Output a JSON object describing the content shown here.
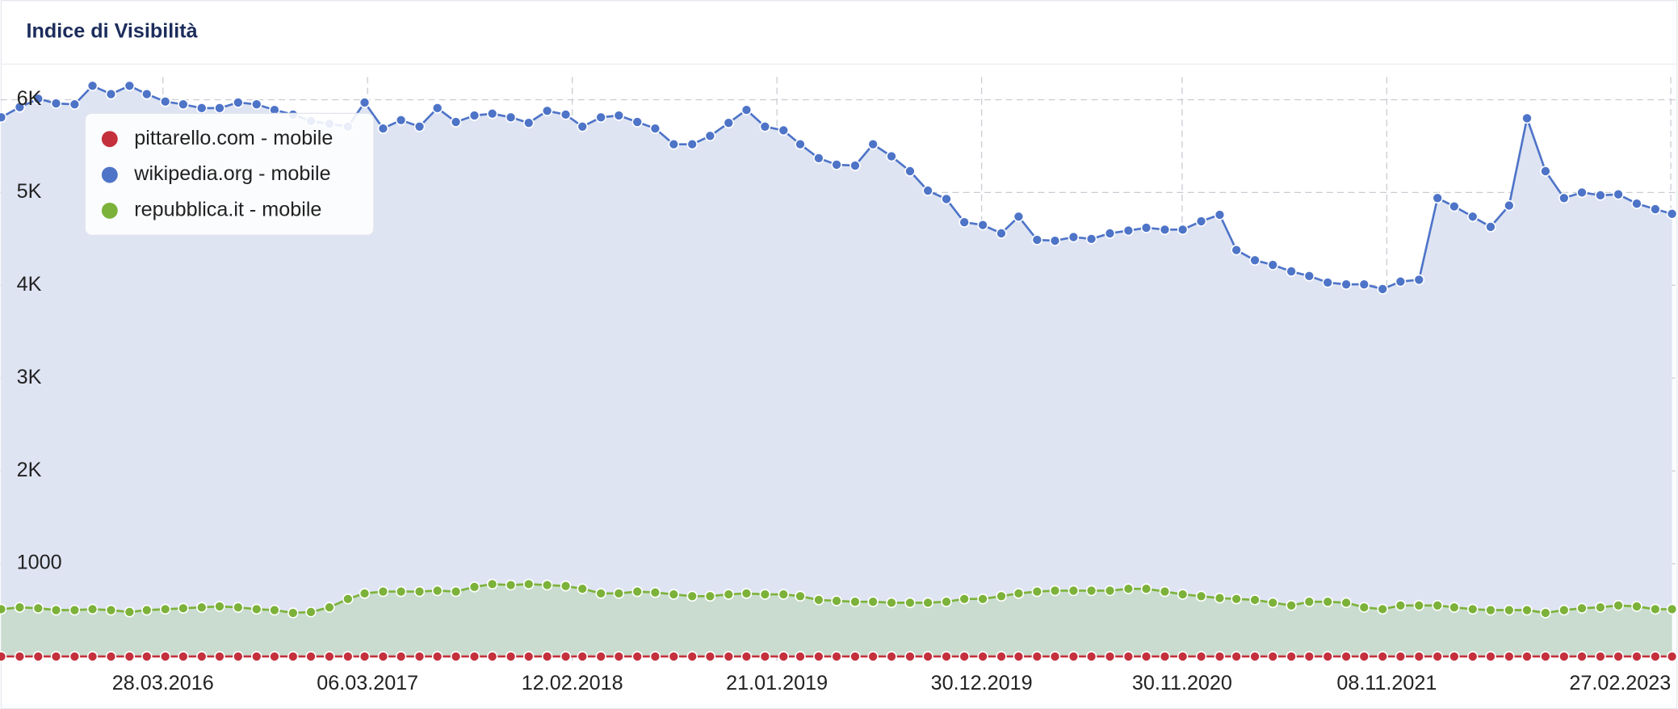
{
  "chart_data": {
    "type": "line",
    "title": "Indice di Visibilità",
    "x": [
      "01.07.2015",
      "01.08.2015",
      "01.09.2015",
      "01.10.2015",
      "01.11.2015",
      "01.12.2015",
      "01.01.2016",
      "01.02.2016",
      "01.03.2016",
      "01.04.2016",
      "01.05.2016",
      "01.06.2016",
      "01.07.2016",
      "01.08.2016",
      "01.09.2016",
      "01.10.2016",
      "01.11.2016",
      "01.12.2016",
      "01.01.2017",
      "01.02.2017",
      "01.03.2017",
      "01.04.2017",
      "01.05.2017",
      "01.06.2017",
      "01.07.2017",
      "01.08.2017",
      "01.09.2017",
      "01.10.2017",
      "01.11.2017",
      "01.12.2017",
      "01.01.2018",
      "01.02.2018",
      "01.03.2018",
      "01.04.2018",
      "01.05.2018",
      "01.06.2018",
      "01.07.2018",
      "01.08.2018",
      "01.09.2018",
      "01.10.2018",
      "01.11.2018",
      "01.12.2018",
      "01.01.2019",
      "01.02.2019",
      "01.03.2019",
      "01.04.2019",
      "01.05.2019",
      "01.06.2019",
      "01.07.2019",
      "01.08.2019",
      "01.09.2019",
      "01.10.2019",
      "01.11.2019",
      "01.12.2019",
      "01.01.2020",
      "01.02.2020",
      "01.03.2020",
      "01.04.2020",
      "01.05.2020",
      "01.06.2020",
      "01.07.2020",
      "01.08.2020",
      "01.09.2020",
      "01.10.2020",
      "01.11.2020",
      "01.12.2020",
      "01.01.2021",
      "01.02.2021",
      "01.03.2021",
      "01.04.2021",
      "01.05.2021",
      "01.06.2021",
      "01.07.2021",
      "01.08.2021",
      "01.09.2021",
      "01.10.2021",
      "01.11.2021",
      "01.12.2021",
      "01.01.2022",
      "01.02.2022",
      "01.03.2022",
      "01.04.2022",
      "01.05.2022",
      "01.06.2022",
      "01.07.2022",
      "01.08.2022",
      "01.09.2022",
      "01.10.2022",
      "01.11.2022",
      "01.12.2022",
      "01.01.2023",
      "01.02.2023",
      "01.03.2023"
    ],
    "series": [
      {
        "name": "pittarello.com - mobile",
        "color": "#c4303c",
        "area_color": null,
        "values": [
          0,
          0,
          0,
          0,
          0,
          0,
          0,
          0,
          0,
          0,
          0,
          0,
          0,
          0,
          0,
          0,
          0,
          0,
          0,
          0,
          0,
          0,
          0,
          0,
          0,
          0,
          0,
          0,
          0,
          0,
          0,
          0,
          0,
          0,
          0,
          0,
          0,
          0,
          0,
          0,
          0,
          0,
          0,
          0,
          0,
          0,
          0,
          0,
          0,
          0,
          0,
          0,
          0,
          0,
          0,
          0,
          0,
          0,
          0,
          0,
          0,
          0,
          0,
          0,
          0,
          0,
          0,
          0,
          0,
          0,
          0,
          0,
          0,
          0,
          0,
          0,
          0,
          0,
          0,
          0,
          0,
          0,
          0,
          0,
          0,
          0,
          0,
          0,
          0,
          0,
          0,
          0,
          0
        ]
      },
      {
        "name": "wikipedia.org - mobile",
        "color": "#4e74c8",
        "area_color": "#dfe4f3",
        "values": [
          5810,
          5920,
          6010,
          5960,
          5950,
          6150,
          6060,
          6150,
          6060,
          5980,
          5950,
          5910,
          5910,
          5970,
          5950,
          5890,
          5840,
          5770,
          5740,
          5710,
          5970,
          5690,
          5780,
          5710,
          5910,
          5760,
          5830,
          5850,
          5810,
          5750,
          5880,
          5840,
          5710,
          5810,
          5830,
          5760,
          5690,
          5520,
          5520,
          5610,
          5750,
          5890,
          5710,
          5670,
          5520,
          5370,
          5300,
          5290,
          5520,
          5390,
          5230,
          5020,
          4930,
          4680,
          4650,
          4560,
          4740,
          4490,
          4480,
          4520,
          4500,
          4560,
          4590,
          4620,
          4600,
          4600,
          4690,
          4760,
          4380,
          4270,
          4220,
          4150,
          4100,
          4030,
          4010,
          4010,
          3960,
          4040,
          4060,
          4940,
          4850,
          4740,
          4630,
          4860,
          5800,
          5230,
          4940,
          5000,
          4970,
          4980,
          4880,
          4820,
          4770
        ]
      },
      {
        "name": "repubblica.it - mobile",
        "color": "#7cb23a",
        "area_color": "#c9dccf",
        "values": [
          510,
          530,
          520,
          500,
          500,
          510,
          500,
          480,
          500,
          510,
          520,
          530,
          540,
          530,
          510,
          500,
          470,
          480,
          530,
          620,
          680,
          700,
          700,
          700,
          710,
          700,
          750,
          780,
          770,
          780,
          770,
          760,
          730,
          680,
          680,
          700,
          690,
          670,
          650,
          650,
          670,
          680,
          670,
          670,
          650,
          610,
          600,
          590,
          590,
          580,
          580,
          580,
          590,
          620,
          620,
          650,
          680,
          700,
          710,
          710,
          710,
          710,
          730,
          730,
          700,
          670,
          650,
          630,
          620,
          610,
          580,
          550,
          590,
          590,
          580,
          530,
          510,
          550,
          550,
          550,
          530,
          510,
          500,
          500,
          500,
          470,
          500,
          520,
          530,
          550,
          540,
          510,
          510
        ]
      }
    ],
    "xlim": [
      "30.06.2015",
      "10.03.2023"
    ],
    "xticks": [
      "28.03.2016",
      "06.03.2017",
      "12.02.2018",
      "21.01.2019",
      "30.12.2019",
      "30.11.2020",
      "08.11.2021",
      "27.02.2023"
    ],
    "ylim": [
      -70,
      6360
    ],
    "yticks": [
      1000,
      {
        "value": 2000,
        "label": "2K"
      },
      {
        "value": 3000,
        "label": "3K"
      },
      {
        "value": 4000,
        "label": "4K"
      },
      {
        "value": 5000,
        "label": "5K"
      },
      {
        "value": 6000,
        "label": "6K"
      }
    ],
    "grid": true,
    "legend": "upper left"
  }
}
